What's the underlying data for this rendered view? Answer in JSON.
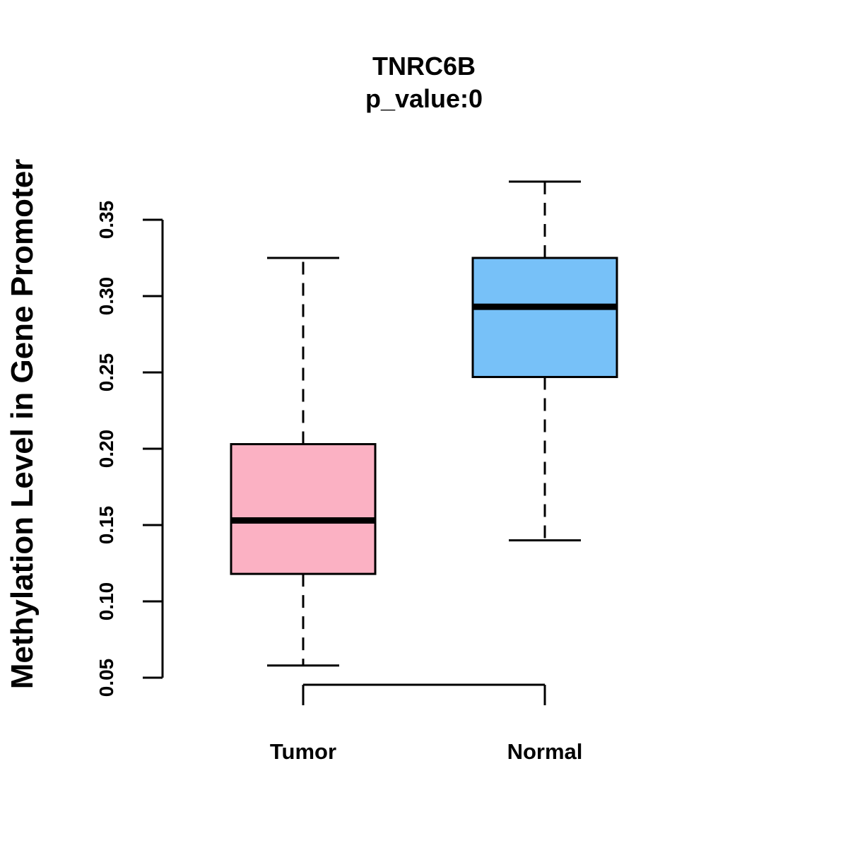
{
  "chart_data": {
    "type": "boxplot",
    "title": "TNRC6B",
    "subtitle": "p_value:0",
    "ylabel": "Methylation Level in Gene Promoter",
    "xlabel": "",
    "ylim": [
      0.05,
      0.35
    ],
    "yticks": [
      "0.05",
      "0.10",
      "0.15",
      "0.20",
      "0.25",
      "0.30",
      "0.35"
    ],
    "grid": false,
    "categories": [
      "Tumor",
      "Normal"
    ],
    "series": [
      {
        "name": "Tumor",
        "color": "#FBB1C3",
        "whisker_low": 0.058,
        "q1": 0.118,
        "median": 0.153,
        "q3": 0.203,
        "whisker_high": 0.325
      },
      {
        "name": "Normal",
        "color": "#77C1F8",
        "whisker_low": 0.14,
        "q1": 0.247,
        "median": 0.293,
        "q3": 0.325,
        "whisker_high": 0.375
      }
    ]
  }
}
